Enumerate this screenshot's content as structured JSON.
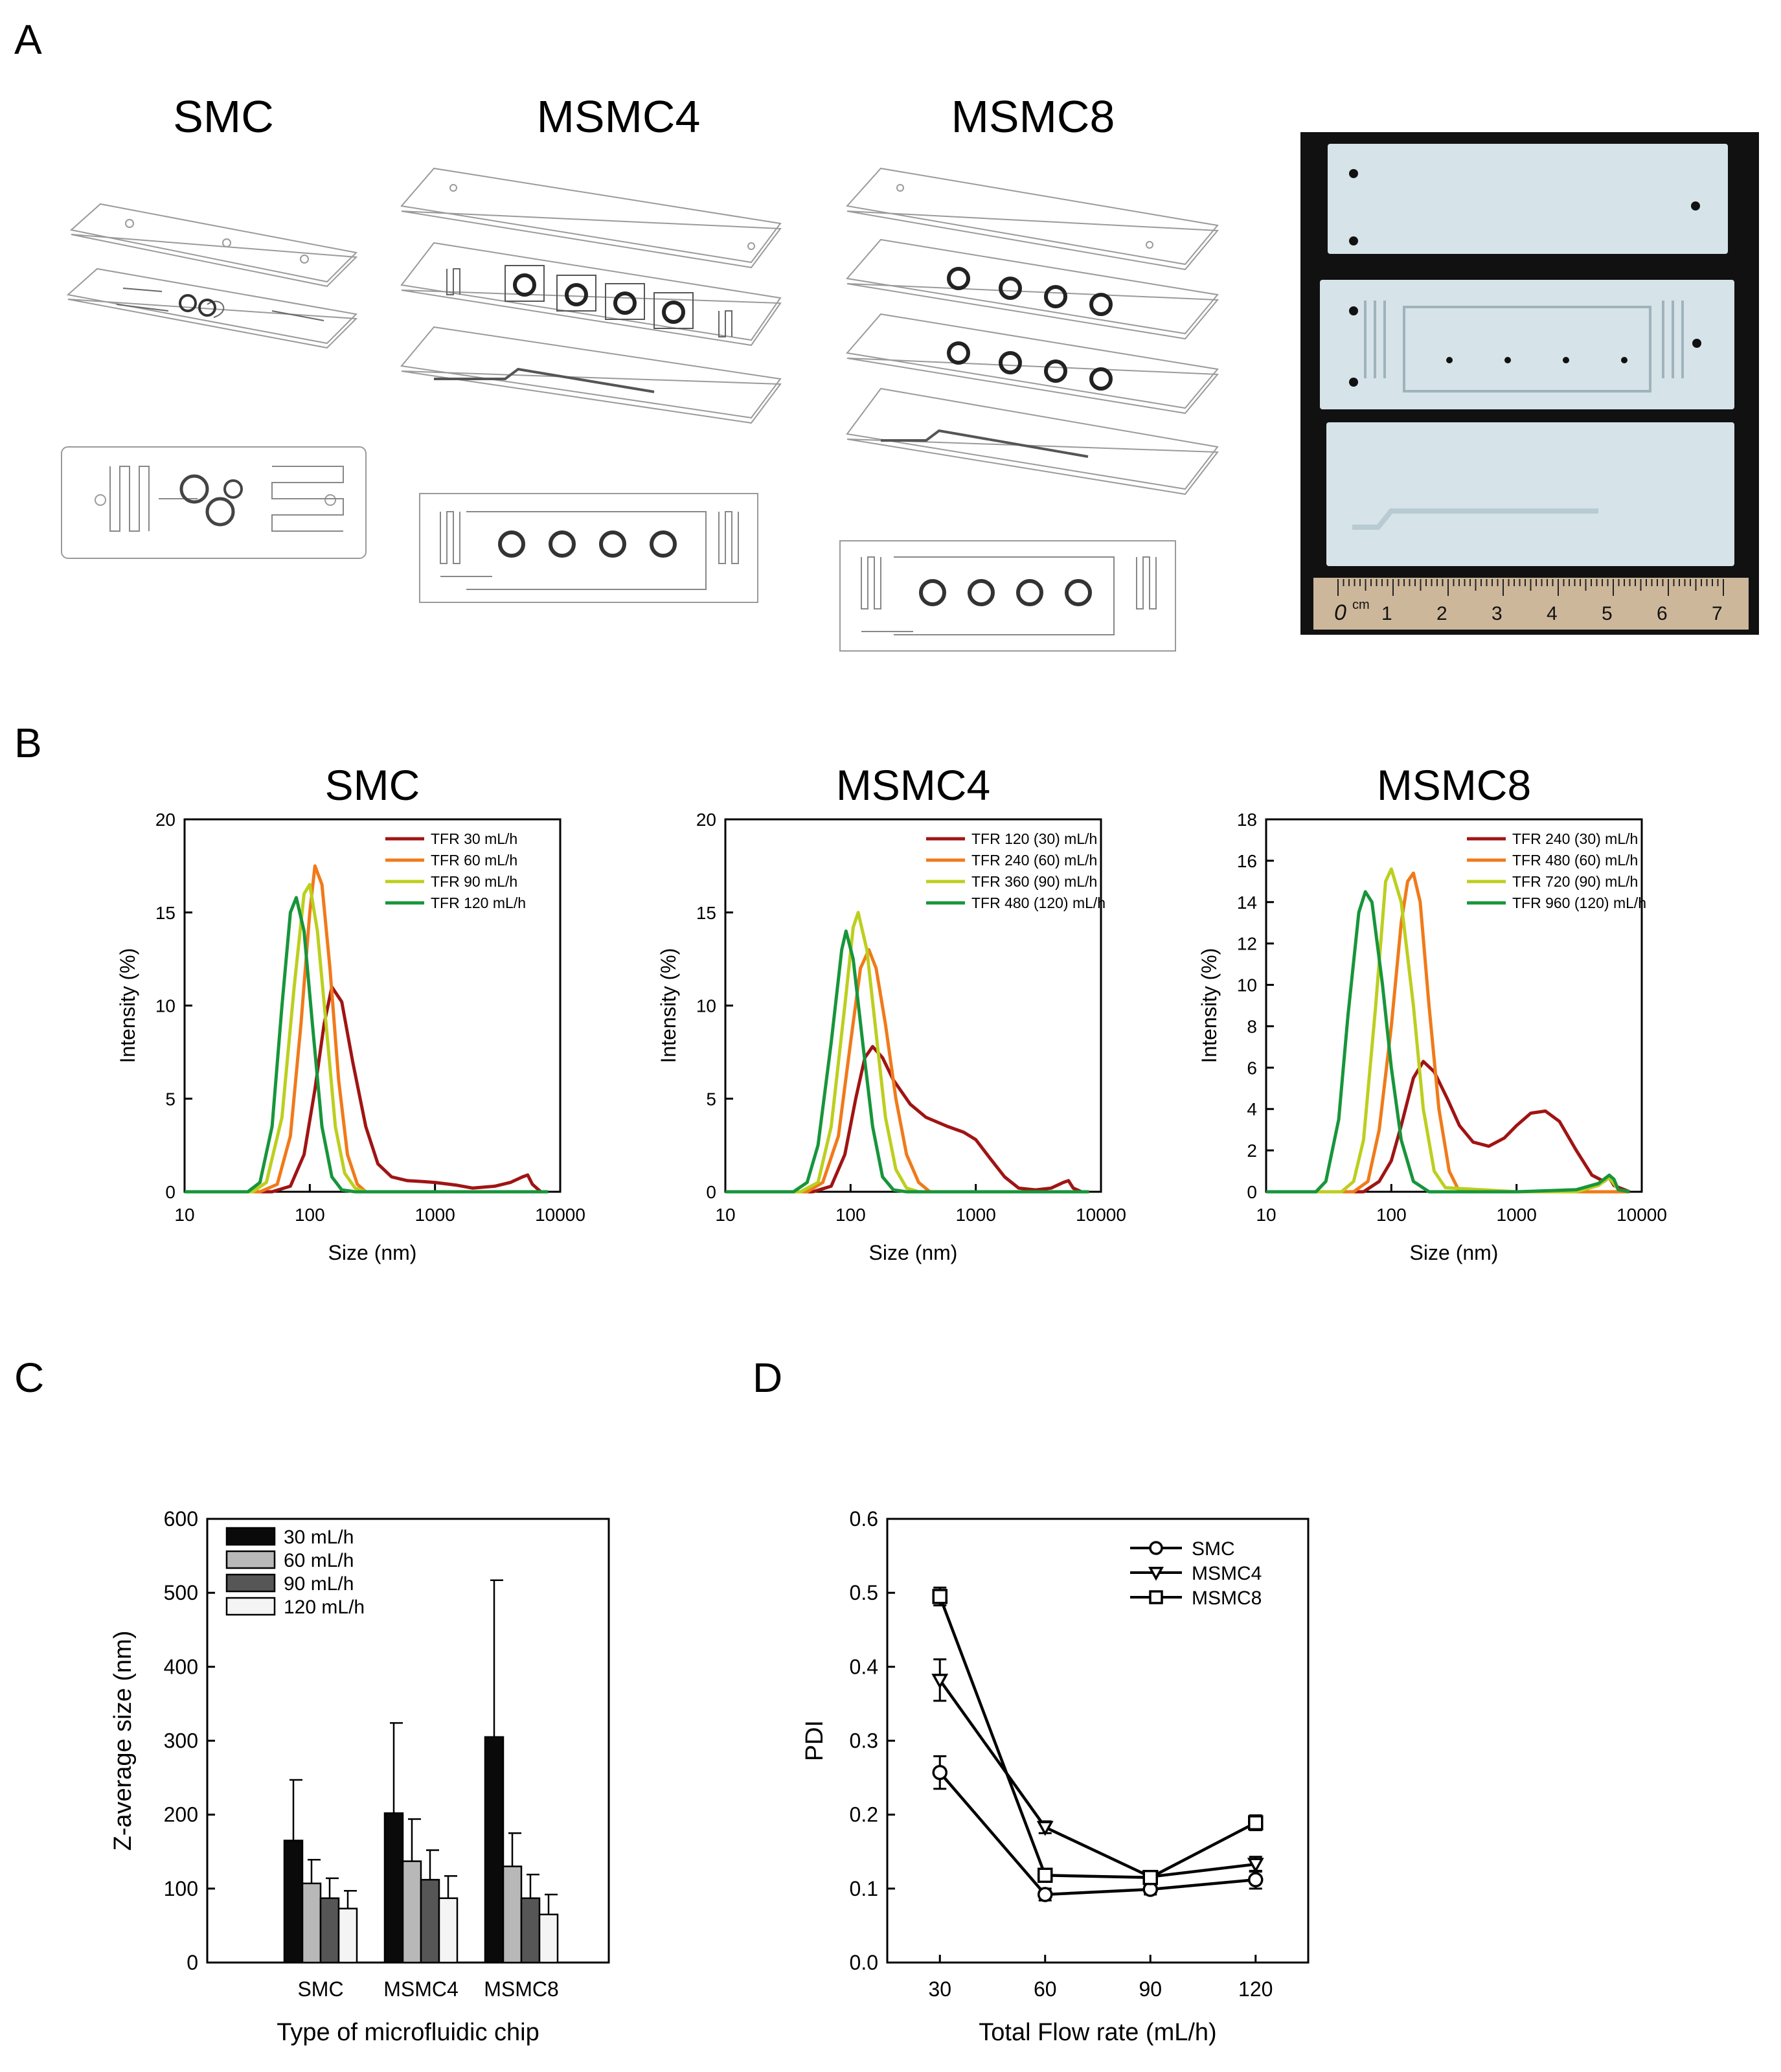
{
  "panels": {
    "A": "A",
    "B": "B",
    "C": "C",
    "D": "D"
  },
  "panelA": {
    "chip_titles": [
      "SMC",
      "MSMC4",
      "MSMC8"
    ],
    "photo": {
      "ruler_unit": "cm",
      "ruler_numbers": [
        "0",
        "1",
        "2",
        "3",
        "4",
        "5",
        "6",
        "7"
      ],
      "colors": {
        "background": "#111111",
        "plate": "#d6e3e8",
        "ruler": "#cdb79a"
      }
    }
  },
  "chart_data": [
    {
      "id": "B-SMC",
      "type": "line",
      "title": "SMC",
      "xlabel": "Size (nm)",
      "ylabel": "Intensity (%)",
      "xscale": "log",
      "xlim": [
        10,
        10000
      ],
      "ylim": [
        0,
        20
      ],
      "xticks": [
        10,
        100,
        1000,
        10000
      ],
      "xtick_labels": [
        "10",
        "100",
        "1000",
        "10000"
      ],
      "yticks": [
        0,
        5,
        10,
        15,
        20
      ],
      "ytick_labels": [
        "0",
        "5",
        "10",
        "15",
        "20"
      ],
      "legend_position": "top-right",
      "series": [
        {
          "name": "TFR 30 mL/h",
          "color": "#a01414",
          "x": [
            10,
            50,
            70,
            90,
            110,
            130,
            150,
            180,
            220,
            280,
            350,
            450,
            600,
            800,
            1000,
            1500,
            2000,
            3000,
            4000,
            5000,
            5500,
            6000,
            7000,
            8000
          ],
          "y": [
            0,
            0,
            0.3,
            2.0,
            5.5,
            9.0,
            11.0,
            10.2,
            7.0,
            3.5,
            1.5,
            0.8,
            0.6,
            0.55,
            0.5,
            0.35,
            0.2,
            0.3,
            0.5,
            0.8,
            0.9,
            0.4,
            0,
            0
          ]
        },
        {
          "name": "TFR 60 mL/h",
          "color": "#f07a1a",
          "x": [
            10,
            40,
            55,
            70,
            85,
            100,
            110,
            125,
            145,
            170,
            200,
            240,
            280,
            350,
            8000
          ],
          "y": [
            0,
            0,
            0.4,
            3.0,
            9.0,
            15.0,
            17.5,
            16.5,
            12.0,
            6.0,
            2.0,
            0.4,
            0,
            0,
            0
          ]
        },
        {
          "name": "TFR 90 mL/h",
          "color": "#bccf1e",
          "x": [
            10,
            35,
            45,
            60,
            75,
            90,
            100,
            115,
            135,
            160,
            190,
            230,
            280,
            8000
          ],
          "y": [
            0,
            0,
            0.5,
            4.0,
            11.0,
            16.0,
            16.5,
            14.0,
            9.0,
            3.5,
            1.0,
            0.2,
            0,
            0
          ]
        },
        {
          "name": "TFR 120 mL/h",
          "color": "#17953b",
          "x": [
            10,
            32,
            40,
            50,
            60,
            70,
            78,
            90,
            105,
            125,
            150,
            180,
            230,
            8000
          ],
          "y": [
            0,
            0,
            0.5,
            3.5,
            10.0,
            15.0,
            15.8,
            14.0,
            9.0,
            3.5,
            0.8,
            0.1,
            0,
            0
          ]
        }
      ]
    },
    {
      "id": "B-MSMC4",
      "type": "line",
      "title": "MSMC4",
      "xlabel": "Size (nm)",
      "ylabel": "Intensity (%)",
      "xscale": "log",
      "xlim": [
        10,
        10000
      ],
      "ylim": [
        0,
        20
      ],
      "xticks": [
        10,
        100,
        1000,
        10000
      ],
      "xtick_labels": [
        "10",
        "100",
        "1000",
        "10000"
      ],
      "yticks": [
        0,
        5,
        10,
        15,
        20
      ],
      "ytick_labels": [
        "0",
        "5",
        "10",
        "15",
        "20"
      ],
      "legend_position": "top-right",
      "series": [
        {
          "name": "TFR 120 (30) mL/h",
          "color": "#a01414",
          "x": [
            10,
            50,
            70,
            90,
            110,
            130,
            150,
            180,
            220,
            300,
            400,
            600,
            800,
            1000,
            1300,
            1700,
            2200,
            3000,
            4000,
            5000,
            5500,
            6000,
            7000,
            8000
          ],
          "y": [
            0,
            0,
            0.3,
            2.0,
            5.0,
            7.2,
            7.8,
            7.2,
            6.0,
            4.7,
            4.0,
            3.5,
            3.2,
            2.8,
            1.8,
            0.8,
            0.2,
            0.1,
            0.2,
            0.5,
            0.6,
            0.2,
            0,
            0
          ]
        },
        {
          "name": "TFR 240 (60) mL/h",
          "color": "#f07a1a",
          "x": [
            10,
            45,
            60,
            80,
            100,
            120,
            140,
            160,
            190,
            230,
            280,
            350,
            430,
            8000
          ],
          "y": [
            0,
            0,
            0.5,
            3.0,
            8.0,
            12.0,
            13.0,
            12.0,
            9.0,
            5.0,
            2.0,
            0.5,
            0,
            0
          ]
        },
        {
          "name": "TFR 360 (90) mL/h",
          "color": "#bccf1e",
          "x": [
            10,
            40,
            55,
            70,
            90,
            105,
            115,
            135,
            160,
            190,
            230,
            280,
            350,
            8000
          ],
          "y": [
            0,
            0,
            0.5,
            3.5,
            10.0,
            14.2,
            15.0,
            13.0,
            8.5,
            4.0,
            1.2,
            0.2,
            0,
            0
          ]
        },
        {
          "name": "TFR 480 (120) mL/h",
          "color": "#17953b",
          "x": [
            10,
            35,
            45,
            55,
            70,
            85,
            92,
            105,
            125,
            150,
            180,
            220,
            280,
            8000
          ],
          "y": [
            0,
            0,
            0.5,
            2.5,
            8.0,
            13.0,
            14.0,
            12.5,
            8.0,
            3.5,
            0.8,
            0.1,
            0,
            0
          ]
        }
      ]
    },
    {
      "id": "B-MSMC8",
      "type": "line",
      "title": "MSMC8",
      "xlabel": "Size (nm)",
      "ylabel": "Intensity (%)",
      "xscale": "log",
      "xlim": [
        10,
        10000
      ],
      "ylim": [
        0,
        18
      ],
      "xticks": [
        10,
        100,
        1000,
        10000
      ],
      "xtick_labels": [
        "10",
        "100",
        "1000",
        "10000"
      ],
      "yticks": [
        0,
        2,
        4,
        6,
        8,
        10,
        12,
        14,
        16,
        18
      ],
      "ytick_labels": [
        "0",
        "2",
        "4",
        "6",
        "8",
        "10",
        "12",
        "14",
        "16",
        "18"
      ],
      "legend_position": "top-right",
      "series": [
        {
          "name": "TFR 240 (30) mL/h",
          "color": "#a01414",
          "x": [
            10,
            60,
            80,
            100,
            120,
            150,
            180,
            220,
            280,
            350,
            450,
            600,
            800,
            1000,
            1300,
            1700,
            2200,
            3000,
            4000,
            5000,
            5500,
            6000,
            8000
          ],
          "y": [
            0,
            0,
            0.5,
            1.5,
            3.2,
            5.5,
            6.3,
            5.8,
            4.5,
            3.2,
            2.4,
            2.2,
            2.6,
            3.2,
            3.8,
            3.9,
            3.4,
            2.0,
            0.8,
            0.5,
            0.7,
            0.3,
            0
          ]
        },
        {
          "name": "TFR 480 (60) mL/h",
          "color": "#f07a1a",
          "x": [
            10,
            50,
            65,
            80,
            100,
            120,
            135,
            150,
            170,
            200,
            240,
            290,
            350,
            8000
          ],
          "y": [
            0,
            0,
            0.5,
            3.0,
            8.0,
            13.0,
            15.0,
            15.4,
            14.0,
            9.0,
            4.0,
            1.0,
            0,
            0
          ]
        },
        {
          "name": "TFR 720 (90) mL/h",
          "color": "#bccf1e",
          "x": [
            10,
            40,
            50,
            60,
            75,
            90,
            100,
            120,
            150,
            180,
            220,
            270,
            1000,
            3000,
            4500,
            5500,
            6500,
            8000
          ],
          "y": [
            0,
            0,
            0.5,
            2.5,
            9.0,
            15.0,
            15.6,
            14.0,
            9.0,
            4.0,
            1.0,
            0.2,
            0,
            0,
            0.3,
            0.7,
            0.1,
            0
          ]
        },
        {
          "name": "TFR 960 (120) mL/h",
          "color": "#17953b",
          "x": [
            10,
            25,
            30,
            38,
            45,
            55,
            62,
            70,
            85,
            100,
            120,
            150,
            200,
            1000,
            3000,
            4500,
            5500,
            6000,
            6500,
            8000
          ],
          "y": [
            0,
            0,
            0.5,
            3.5,
            8.5,
            13.5,
            14.5,
            14.0,
            10.0,
            6.0,
            2.5,
            0.5,
            0,
            0,
            0.1,
            0.4,
            0.8,
            0.6,
            0.1,
            0
          ]
        }
      ]
    },
    {
      "id": "C",
      "type": "bar",
      "title": "",
      "xlabel": "Type of microfluidic chip",
      "ylabel": "Z-average size (nm)",
      "ylim": [
        0,
        600
      ],
      "yticks": [
        0,
        100,
        200,
        300,
        400,
        500,
        600
      ],
      "ytick_labels": [
        "0",
        "100",
        "200",
        "300",
        "400",
        "500",
        "600"
      ],
      "categories": [
        "SMC",
        "MSMC4",
        "MSMC8"
      ],
      "legend_position": "top-left",
      "series": [
        {
          "name": "30 mL/h",
          "color": "#0a0a0a",
          "values": [
            165,
            202,
            305
          ],
          "errors": [
            82,
            122,
            212
          ]
        },
        {
          "name": "60 mL/h",
          "color": "#b8b8b8",
          "values": [
            107,
            137,
            130
          ],
          "errors": [
            32,
            57,
            45
          ]
        },
        {
          "name": "90 mL/h",
          "color": "#565656",
          "values": [
            87,
            112,
            87
          ],
          "errors": [
            27,
            40,
            32
          ]
        },
        {
          "name": "120 mL/h",
          "color": "#f4f4f4",
          "values": [
            73,
            87,
            65
          ],
          "errors": [
            24,
            30,
            27
          ]
        }
      ]
    },
    {
      "id": "D",
      "type": "line",
      "title": "",
      "xlabel": "Total Flow rate (mL/h)",
      "ylabel": "PDI",
      "xlim": [
        15,
        135
      ],
      "ylim": [
        0,
        0.6
      ],
      "xticks": [
        30,
        60,
        90,
        120
      ],
      "xtick_labels": [
        "30",
        "60",
        "90",
        "120"
      ],
      "yticks": [
        0,
        0.1,
        0.2,
        0.3,
        0.4,
        0.5,
        0.6
      ],
      "ytick_labels": [
        "0.0",
        "0.1",
        "0.2",
        "0.3",
        "0.4",
        "0.5",
        "0.6"
      ],
      "legend_position": "top-right",
      "series": [
        {
          "name": "SMC",
          "marker": "circle",
          "x": [
            30,
            60,
            90,
            120
          ],
          "y": [
            0.257,
            0.092,
            0.099,
            0.112
          ],
          "errors": [
            0.022,
            0.008,
            0.007,
            0.012
          ]
        },
        {
          "name": "MSMC4",
          "marker": "triangle-down",
          "x": [
            30,
            60,
            90,
            120
          ],
          "y": [
            0.382,
            0.183,
            0.116,
            0.133
          ],
          "errors": [
            0.028,
            0.008,
            0.006,
            0.01
          ]
        },
        {
          "name": "MSMC8",
          "marker": "square",
          "x": [
            30,
            60,
            90,
            120
          ],
          "y": [
            0.495,
            0.118,
            0.115,
            0.189
          ],
          "errors": [
            0.012,
            0.006,
            0.005,
            0.01
          ]
        }
      ]
    }
  ]
}
